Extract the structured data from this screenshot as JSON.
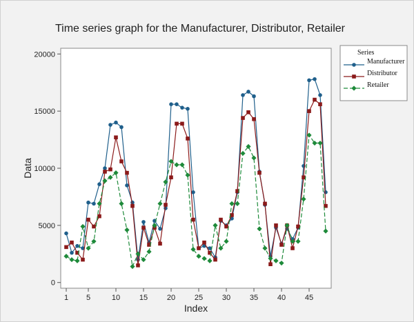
{
  "chart_data": {
    "type": "line",
    "title": "Time series graph for the Manufacturer, Distributor, Retailer",
    "xlabel": "Index",
    "ylabel": "Data",
    "xlim": [
      0,
      49
    ],
    "ylim": [
      -500,
      20500
    ],
    "x_ticks": [
      1,
      5,
      10,
      15,
      20,
      25,
      30,
      35,
      40,
      45
    ],
    "y_ticks": [
      0,
      5000,
      10000,
      15000,
      20000
    ],
    "legend": {
      "title": "Series",
      "position": "right"
    },
    "x": [
      1,
      2,
      3,
      4,
      5,
      6,
      7,
      8,
      9,
      10,
      11,
      12,
      13,
      14,
      15,
      16,
      17,
      18,
      19,
      20,
      21,
      22,
      23,
      24,
      25,
      26,
      27,
      28,
      29,
      30,
      31,
      32,
      33,
      34,
      35,
      36,
      37,
      38,
      39,
      40,
      41,
      42,
      43,
      44,
      45,
      46,
      47,
      48
    ],
    "series": [
      {
        "name": "Manufacturer",
        "color": "#1f5f8b",
        "marker": "circle",
        "line": "solid",
        "values": [
          4300,
          2600,
          3200,
          3000,
          7000,
          6900,
          8600,
          10000,
          13800,
          14000,
          13600,
          8500,
          7000,
          2000,
          5300,
          3500,
          5400,
          4700,
          6500,
          15600,
          15600,
          15300,
          15200,
          7900,
          3000,
          3200,
          3000,
          2200,
          5400,
          5000,
          5600,
          7900,
          16400,
          16700,
          16300,
          9700,
          6800,
          2300,
          4800,
          3400,
          4700,
          3800,
          4800,
          10200,
          17700,
          17800,
          16400,
          7900
        ]
      },
      {
        "name": "Distributor",
        "color": "#8b1a1a",
        "marker": "square",
        "line": "solid",
        "values": [
          3100,
          3500,
          2600,
          2000,
          5500,
          4900,
          5800,
          9700,
          9900,
          12700,
          10600,
          9600,
          6700,
          1500,
          4800,
          3300,
          4800,
          3400,
          6800,
          9200,
          13900,
          13900,
          12600,
          5500,
          3000,
          3500,
          2600,
          2000,
          5500,
          4900,
          5900,
          8000,
          14400,
          14900,
          14300,
          9600,
          6900,
          1600,
          5000,
          3300,
          5000,
          3000,
          4900,
          9200,
          15000,
          16000,
          15600,
          6700
        ]
      },
      {
        "name": "Retailer",
        "color": "#1e8a3a",
        "marker": "diamond",
        "line": "dashed",
        "values": [
          2300,
          2000,
          1900,
          4900,
          3000,
          3600,
          6900,
          8900,
          9200,
          9600,
          6900,
          4600,
          1400,
          2500,
          2000,
          2700,
          5000,
          6900,
          8800,
          10600,
          10300,
          10300,
          9400,
          2900,
          2300,
          2100,
          1900,
          5000,
          3000,
          3600,
          6900,
          6900,
          11300,
          11900,
          10900,
          4700,
          3000,
          2100,
          1900,
          1700,
          5000,
          3600,
          3600,
          7300,
          12900,
          12200,
          12200,
          4500
        ]
      }
    ]
  }
}
